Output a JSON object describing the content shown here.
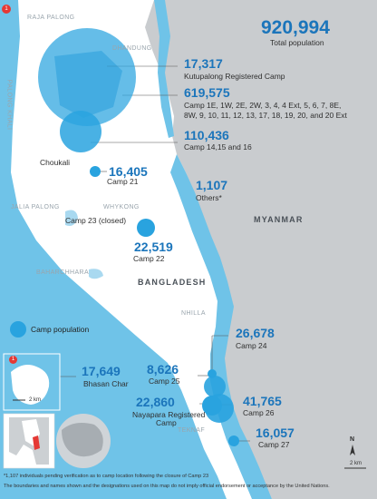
{
  "total": {
    "value": "920,994",
    "label": "Total population"
  },
  "camps": [
    {
      "id": "kutupalong",
      "value": "17,317",
      "label": "Kutupalong Registered Camp"
    },
    {
      "id": "expansion",
      "value": "619,575",
      "label_line1": "Camp 1E, 1W, 2E, 2W, 3, 4, 4 Ext, 5, 6, 7, 8E,",
      "label_line2": "8W, 9, 10, 11, 12, 13, 17, 18, 19, 20, and 20 Ext"
    },
    {
      "id": "camp14",
      "value": "110,436",
      "label": "Camp 14,15 and 16"
    },
    {
      "id": "camp21",
      "value": "16,405",
      "label": "Camp 21"
    },
    {
      "id": "others",
      "value": "1,107",
      "label": "Others*"
    },
    {
      "id": "camp22",
      "value": "22,519",
      "label": "Camp 22"
    },
    {
      "id": "camp24",
      "value": "26,678",
      "label": "Camp 24"
    },
    {
      "id": "camp25",
      "value": "8,626",
      "label": "Camp 25"
    },
    {
      "id": "nayapara",
      "value": "22,860",
      "label_line1": "Nayapara Registered",
      "label_line2": "Camp"
    },
    {
      "id": "camp26",
      "value": "41,765",
      "label": "Camp 26"
    },
    {
      "id": "camp27",
      "value": "16,057",
      "label": "Camp 27"
    },
    {
      "id": "bhasan",
      "value": "17,649",
      "label": "Bhasan Char"
    }
  ],
  "camp23": "Camp 23 (closed)",
  "places": {
    "raja_palong": "RAJA PALONG",
    "dhandung": "DHANDUNG",
    "palong_khali": "PALONG KHALI",
    "chouakali": "Choukali",
    "jalia_palong": "JALIA PALONG",
    "whykong": "WHYKONG",
    "baharchhara": "BAHARCHHARA",
    "nhilla": "NHILLA",
    "teknaf": "TEKNAF",
    "myanmar": "MYANMAR",
    "bangladesh": "BANGLADESH"
  },
  "legend": {
    "label": "Camp population"
  },
  "scale": {
    "main": "2 km",
    "inset": "2 km"
  },
  "north": "N",
  "inset_marker": "1",
  "map_marker": "1",
  "footnotes": {
    "line1": "*1,107 individuals pending verification as to camp location following the closure of Camp 23",
    "line2": "The boundaries and names shown and the designations used on this map do not imply official endorsement or acceptance by the United Nations."
  },
  "colors": {
    "water": "#6fc3e8",
    "land": "#ffffff",
    "myanmar": "#c7cacc",
    "bubble": "#29a3df",
    "bubble_dark": "#1b75bb",
    "text_blue": "#1b75bb"
  }
}
